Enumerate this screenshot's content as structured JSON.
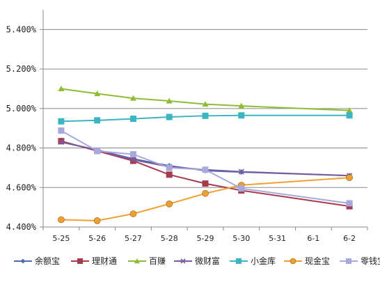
{
  "chart_data": {
    "type": "line",
    "title": "",
    "xlabel": "",
    "ylabel": "",
    "categories": [
      "5-25",
      "5-26",
      "5-27",
      "5-28",
      "5-29",
      "5-30",
      "5-31",
      "6-1",
      "6-2"
    ],
    "y_ticks": [
      "4.400%",
      "4.600%",
      "4.800%",
      "5.000%",
      "5.200%",
      "5.400%"
    ],
    "ylim": [
      4.4,
      5.5
    ],
    "grid": "horizontal",
    "legend_position": "bottom",
    "series": [
      {
        "name": "余额宝",
        "color": "#4a6eb0",
        "marker": "diamond",
        "values": [
          4.83,
          4.79,
          4.745,
          4.71,
          4.685,
          4.678,
          null,
          null,
          4.66
        ]
      },
      {
        "name": "理财通",
        "color": "#a83a4e",
        "marker": "square",
        "values": [
          4.835,
          4.785,
          4.735,
          4.665,
          4.62,
          4.585,
          null,
          null,
          4.505
        ]
      },
      {
        "name": "百赚",
        "color": "#8ebc33",
        "marker": "triangle",
        "values": [
          5.1,
          5.075,
          5.052,
          5.038,
          5.022,
          5.013,
          null,
          null,
          4.99
        ]
      },
      {
        "name": "微财富",
        "color": "#7a5c9e",
        "marker": "x",
        "values": [
          4.83,
          4.79,
          4.74,
          4.705,
          4.69,
          4.68,
          null,
          null,
          4.66
        ]
      },
      {
        "name": "小金库",
        "color": "#3bb5c1",
        "marker": "square",
        "values": [
          4.935,
          4.94,
          4.948,
          4.957,
          4.963,
          4.965,
          null,
          null,
          4.965
        ]
      },
      {
        "name": "现金宝",
        "color": "#f0a030",
        "marker": "circle",
        "values": [
          4.437,
          4.432,
          4.467,
          4.517,
          4.57,
          4.612,
          null,
          null,
          4.65
        ]
      },
      {
        "name": "零钱宝",
        "color": "#a7a8dc",
        "marker": "square",
        "values": [
          4.888,
          4.785,
          4.768,
          4.7,
          4.69,
          4.595,
          null,
          null,
          4.52
        ]
      }
    ]
  }
}
